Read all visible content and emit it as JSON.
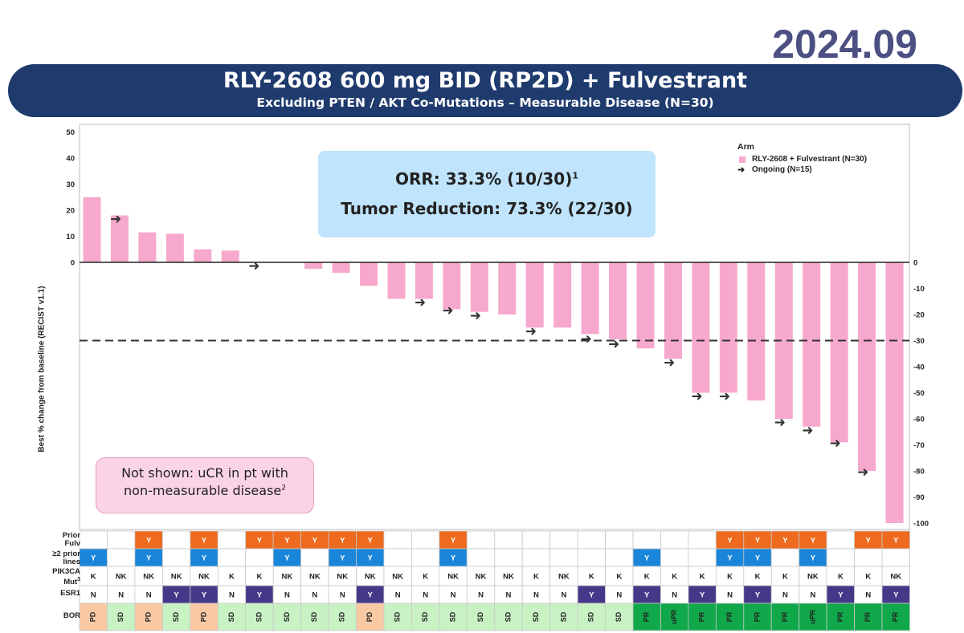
{
  "date_label": "2024.09",
  "title": "RLY-2608 600 mg BID (RP2D) + Fulvestrant",
  "subtitle": "Excluding PTEN / AKT Co-Mutations – Measurable Disease (N=30)",
  "orr_box": {
    "line1": "ORR: 33.3% (10/30)",
    "line1_sup": "1",
    "line2": "Tumor Reduction: 73.3% (22/30)"
  },
  "note_box": {
    "line1": "Not shown: uCR in pt with",
    "line2": "non-measurable disease",
    "line2_sup": "2"
  },
  "legend": {
    "title": "Arm",
    "items": [
      "RLY-2608 + Fulvestrant (N=30)",
      "Ongoing (N=15)"
    ]
  },
  "row_labels": {
    "prior_fulv": [
      "Prior",
      "Fulv"
    ],
    "prior_lines": [
      "≥2 prior",
      "lines"
    ],
    "pik3ca": [
      "PIK3CA",
      "Mut"
    ],
    "pik3ca_sup": "3",
    "esr1": [
      "ESR1"
    ],
    "bor": [
      "BOR"
    ]
  },
  "colors": {
    "bar": "#f7a8cd",
    "prior_fulv_y": "#ee6a1e",
    "prior_lines_y": "#1a86da",
    "esr1_y": "#463889",
    "bor_pd": "#f9c9a4",
    "bor_sd": "#c8f2c4",
    "bor_pr": "#10a84a",
    "banner": "#1f3b6e",
    "date": "#4b4f82"
  },
  "chart_data": {
    "type": "bar",
    "ylabel": "Best % change from baseline (RECIST v1.1)",
    "ylim": [
      -100,
      50
    ],
    "left_ticks": [
      50,
      40,
      30,
      20,
      10,
      0
    ],
    "right_ticks": [
      0,
      -10,
      -20,
      -30,
      -40,
      -50,
      -60,
      -70,
      -80,
      -90,
      -100
    ],
    "threshold_line": -30,
    "values": [
      25,
      18,
      11.5,
      11,
      5,
      4.5,
      0,
      -2.5,
      -4,
      -9,
      -14,
      -14,
      -18,
      -19,
      -20,
      -25,
      -25,
      -27.5,
      -29.5,
      -33,
      -37,
      -50,
      -50,
      -53,
      -60,
      -63,
      -69,
      -80,
      -100
    ],
    "ongoing_arrow_values": [
      18,
      0,
      -14,
      -17,
      -19,
      -25,
      -28,
      -30,
      -37,
      -50,
      -50,
      -60,
      -63,
      -68,
      -79
    ],
    "ongoing_arrow_bar_index": [
      1,
      6,
      12,
      13,
      14,
      16,
      19,
      20,
      22,
      24,
      25,
      27,
      28,
      29,
      30
    ],
    "bar_positions": [
      0,
      1,
      2,
      3,
      4,
      5,
      6,
      8,
      9,
      10,
      11,
      12,
      13,
      14,
      15,
      16,
      17,
      18,
      19,
      20,
      21,
      22,
      23,
      24,
      25,
      26,
      27,
      28,
      29
    ],
    "ongoing_positions": [
      1,
      6,
      12,
      13,
      14,
      16,
      18,
      19,
      21,
      22,
      23,
      25,
      26,
      27,
      28
    ],
    "table": {
      "prior_fulv": [
        "",
        "",
        "Y",
        "",
        "Y",
        "",
        "Y",
        "Y",
        "Y",
        "Y",
        "Y",
        "",
        "",
        "Y",
        "",
        "",
        "",
        "",
        "",
        "",
        "",
        "",
        "",
        "Y",
        "Y",
        "Y",
        "Y",
        "",
        "Y",
        "Y"
      ],
      "prior_lines": [
        "Y",
        "",
        "Y",
        "",
        "Y",
        "",
        "",
        "Y",
        "",
        "Y",
        "Y",
        "",
        "",
        "Y",
        "",
        "",
        "",
        "",
        "",
        "",
        "Y",
        "",
        "",
        "Y",
        "Y",
        "",
        "Y",
        "",
        "",
        ""
      ],
      "pik3ca": [
        "K",
        "NK",
        "NK",
        "NK",
        "NK",
        "K",
        "K",
        "NK",
        "NK",
        "NK",
        "NK",
        "NK",
        "K",
        "NK",
        "NK",
        "NK",
        "K",
        "NK",
        "K",
        "K",
        "K",
        "K",
        "K",
        "K",
        "K",
        "K",
        "NK",
        "K",
        "K",
        "NK"
      ],
      "esr1": [
        "N",
        "N",
        "N",
        "Y",
        "Y",
        "N",
        "Y",
        "N",
        "N",
        "N",
        "Y",
        "N",
        "N",
        "N",
        "N",
        "N",
        "N",
        "N",
        "Y",
        "N",
        "Y",
        "N",
        "Y",
        "N",
        "Y",
        "N",
        "N",
        "Y",
        "N",
        "Y"
      ],
      "bor": [
        "PD",
        "SD",
        "PD",
        "SD",
        "PD",
        "SD",
        "SD",
        "SD",
        "SD",
        "SD",
        "PD",
        "SD",
        "SD",
        "SD",
        "SD",
        "SD",
        "SD",
        "SD",
        "SD",
        "SD",
        "PR",
        "uPR",
        "PR",
        "PR",
        "PR",
        "PR",
        "uPR",
        "PR",
        "PR",
        "PR"
      ]
    }
  }
}
